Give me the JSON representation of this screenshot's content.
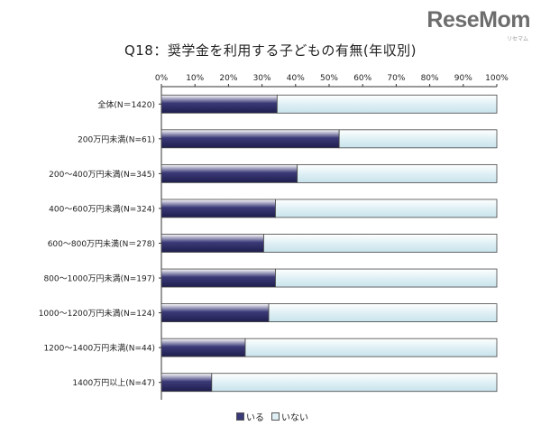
{
  "logo": {
    "text": "ReseMom",
    "sub": "リセマム"
  },
  "chart_data": {
    "type": "bar",
    "orientation": "horizontal",
    "stacked": true,
    "percent_stacked": true,
    "title": "Q18：奨学金を利用する子どもの有無(年収別)",
    "categories": [
      "全体(N＝1420)",
      "200万円未満(N=61)",
      "200～400万円未満(N=345)",
      "400～600万円未満(N=324)",
      "600～800万円未満(N＝278)",
      "800～1000万円未満(N=197)",
      "1000～1200万円未満(N=124)",
      "1200～1400万円未満(N=44)",
      "1400万円以上(N=47)"
    ],
    "series": [
      {
        "name": "いる",
        "values": [
          34.5,
          53,
          40.5,
          34,
          30.5,
          34,
          32,
          25,
          15
        ],
        "color": "#3b3a78"
      },
      {
        "name": "いない",
        "values": [
          65.5,
          47,
          59.5,
          66,
          69.5,
          66,
          68,
          75,
          85
        ],
        "color": "#dff0f5"
      }
    ],
    "xlim": [
      0,
      100
    ],
    "xticks": [
      "0%",
      "10%",
      "20%",
      "30%",
      "40%",
      "50%",
      "60%",
      "70%",
      "80%",
      "90%",
      "100%"
    ],
    "grid": false,
    "legend_position": "bottom"
  }
}
